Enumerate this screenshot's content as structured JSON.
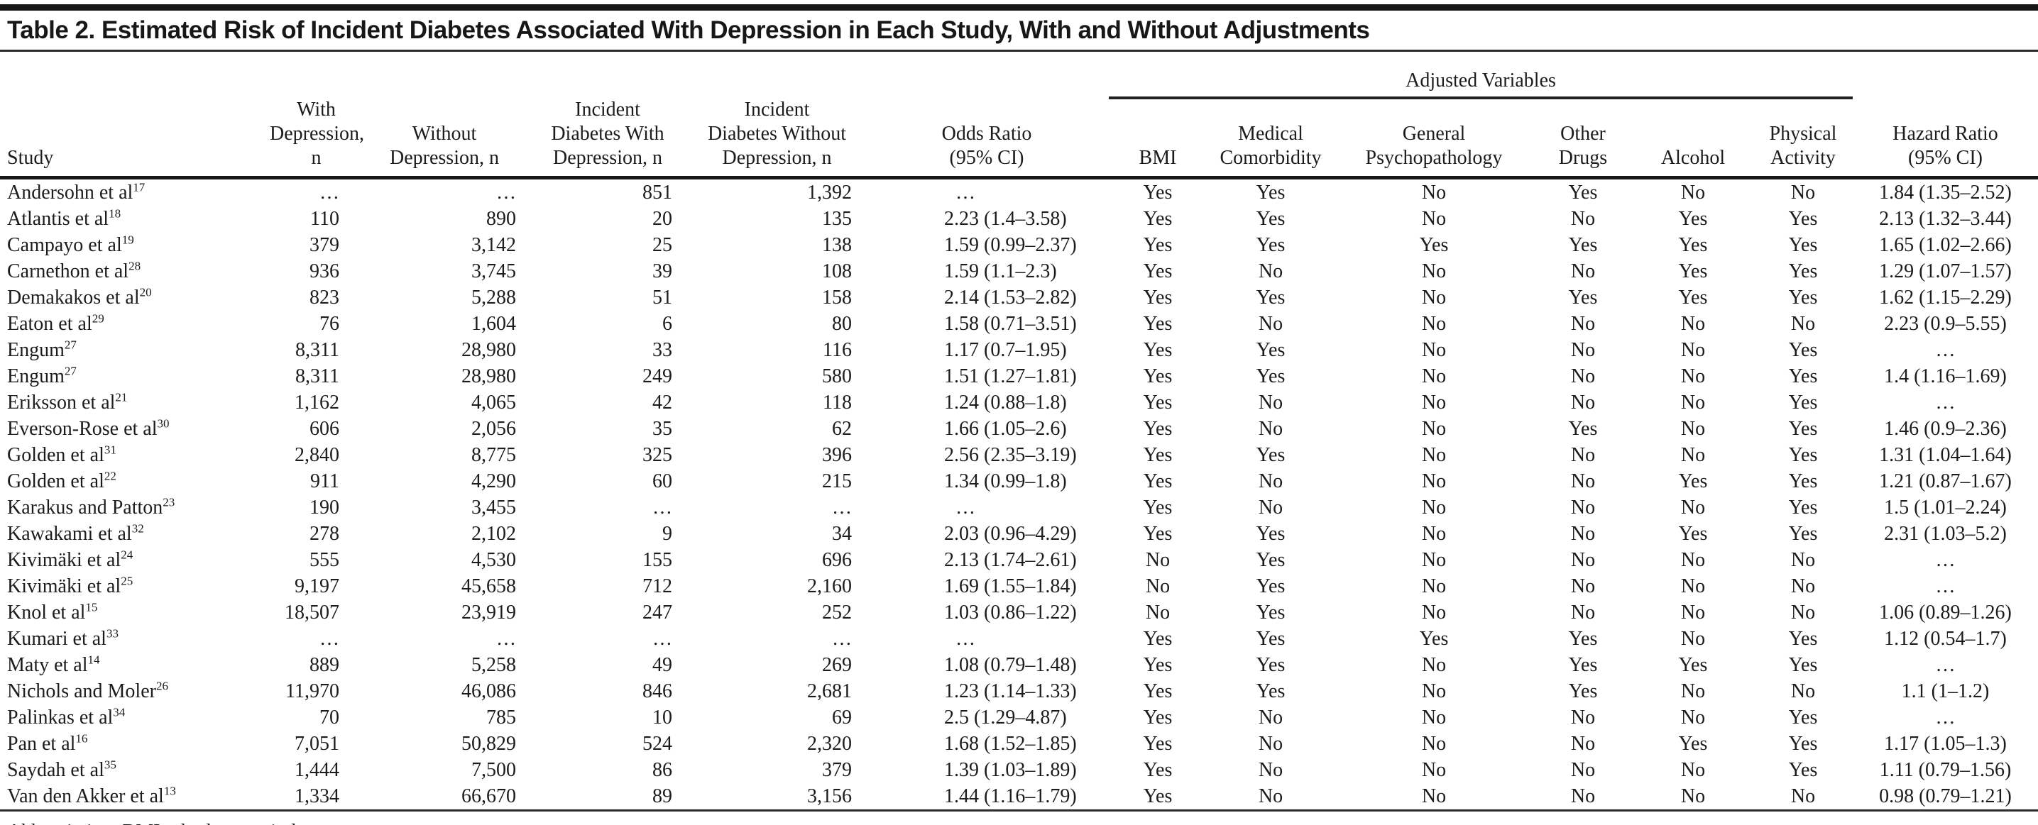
{
  "title": "Table 2. Estimated Risk of Incident Diabetes Associated With Depression in Each Study, With and Without Adjustments",
  "footnote": "Abbreviation: BMI = body mass index.",
  "table": {
    "group_header": "Adjusted Variables",
    "headers": {
      "study": [
        "Study"
      ],
      "with_depression": [
        "With",
        "Depression, n"
      ],
      "without_depression": [
        "Without",
        "Depression, n"
      ],
      "incident_with": [
        "Incident",
        "Diabetes With",
        "Depression, n"
      ],
      "incident_without": [
        "Incident",
        "Diabetes Without",
        "Depression, n"
      ],
      "odds_ratio": [
        "Odds Ratio",
        "(95% CI)"
      ],
      "bmi": [
        "BMI"
      ],
      "medical_comorbidity": [
        "Medical",
        "Comorbidity"
      ],
      "general_psychopathology": [
        "General",
        "Psychopathology"
      ],
      "other_drugs": [
        "Other",
        "Drugs"
      ],
      "alcohol": [
        "Alcohol"
      ],
      "physical_activity": [
        "Physical",
        "Activity"
      ],
      "hazard_ratio": [
        "Hazard Ratio",
        "(95% CI)"
      ]
    },
    "rows": [
      {
        "study": "Andersohn et al",
        "ref": "17",
        "with_depression": "…",
        "without_depression": "…",
        "incident_with": "851",
        "incident_without": "1,392",
        "odds_ratio": "…",
        "bmi": "Yes",
        "medical_comorbidity": "Yes",
        "general_psychopathology": "No",
        "other_drugs": "Yes",
        "alcohol": "No",
        "physical_activity": "No",
        "hazard_ratio": "1.84 (1.35–2.52)"
      },
      {
        "study": "Atlantis et al",
        "ref": "18",
        "with_depression": "110",
        "without_depression": "890",
        "incident_with": "20",
        "incident_without": "135",
        "odds_ratio": "2.23 (1.4–3.58)",
        "bmi": "Yes",
        "medical_comorbidity": "Yes",
        "general_psychopathology": "No",
        "other_drugs": "No",
        "alcohol": "Yes",
        "physical_activity": "Yes",
        "hazard_ratio": "2.13 (1.32–3.44)"
      },
      {
        "study": "Campayo et al",
        "ref": "19",
        "with_depression": "379",
        "without_depression": "3,142",
        "incident_with": "25",
        "incident_without": "138",
        "odds_ratio": "1.59 (0.99–2.37)",
        "bmi": "Yes",
        "medical_comorbidity": "Yes",
        "general_psychopathology": "Yes",
        "other_drugs": "Yes",
        "alcohol": "Yes",
        "physical_activity": "Yes",
        "hazard_ratio": "1.65 (1.02–2.66)"
      },
      {
        "study": "Carnethon et al",
        "ref": "28",
        "with_depression": "936",
        "without_depression": "3,745",
        "incident_with": "39",
        "incident_without": "108",
        "odds_ratio": "1.59 (1.1–2.3)",
        "bmi": "Yes",
        "medical_comorbidity": "No",
        "general_psychopathology": "No",
        "other_drugs": "No",
        "alcohol": "Yes",
        "physical_activity": "Yes",
        "hazard_ratio": "1.29 (1.07–1.57)"
      },
      {
        "study": "Demakakos et al",
        "ref": "20",
        "with_depression": "823",
        "without_depression": "5,288",
        "incident_with": "51",
        "incident_without": "158",
        "odds_ratio": "2.14 (1.53–2.82)",
        "bmi": "Yes",
        "medical_comorbidity": "Yes",
        "general_psychopathology": "No",
        "other_drugs": "Yes",
        "alcohol": "Yes",
        "physical_activity": "Yes",
        "hazard_ratio": "1.62 (1.15–2.29)"
      },
      {
        "study": "Eaton et al",
        "ref": "29",
        "with_depression": "76",
        "without_depression": "1,604",
        "incident_with": "6",
        "incident_without": "80",
        "odds_ratio": "1.58 (0.71–3.51)",
        "bmi": "Yes",
        "medical_comorbidity": "No",
        "general_psychopathology": "No",
        "other_drugs": "No",
        "alcohol": "No",
        "physical_activity": "No",
        "hazard_ratio": "2.23 (0.9–5.55)"
      },
      {
        "study": "Engum",
        "ref": "27",
        "with_depression": "8,311",
        "without_depression": "28,980",
        "incident_with": "33",
        "incident_without": "116",
        "odds_ratio": "1.17 (0.7–1.95)",
        "bmi": "Yes",
        "medical_comorbidity": "Yes",
        "general_psychopathology": "No",
        "other_drugs": "No",
        "alcohol": "No",
        "physical_activity": "Yes",
        "hazard_ratio": "…"
      },
      {
        "study": "Engum",
        "ref": "27",
        "with_depression": "8,311",
        "without_depression": "28,980",
        "incident_with": "249",
        "incident_without": "580",
        "odds_ratio": "1.51 (1.27–1.81)",
        "bmi": "Yes",
        "medical_comorbidity": "Yes",
        "general_psychopathology": "No",
        "other_drugs": "No",
        "alcohol": "No",
        "physical_activity": "Yes",
        "hazard_ratio": "1.4 (1.16–1.69)"
      },
      {
        "study": "Eriksson et al",
        "ref": "21",
        "with_depression": "1,162",
        "without_depression": "4,065",
        "incident_with": "42",
        "incident_without": "118",
        "odds_ratio": "1.24 (0.88–1.8)",
        "bmi": "Yes",
        "medical_comorbidity": "No",
        "general_psychopathology": "No",
        "other_drugs": "No",
        "alcohol": "No",
        "physical_activity": "Yes",
        "hazard_ratio": "…"
      },
      {
        "study": "Everson-Rose et al",
        "ref": "30",
        "with_depression": "606",
        "without_depression": "2,056",
        "incident_with": "35",
        "incident_without": "62",
        "odds_ratio": "1.66 (1.05–2.6)",
        "bmi": "Yes",
        "medical_comorbidity": "No",
        "general_psychopathology": "No",
        "other_drugs": "Yes",
        "alcohol": "No",
        "physical_activity": "Yes",
        "hazard_ratio": "1.46 (0.9–2.36)"
      },
      {
        "study": "Golden et al",
        "ref": "31",
        "with_depression": "2,840",
        "without_depression": "8,775",
        "incident_with": "325",
        "incident_without": "396",
        "odds_ratio": "2.56 (2.35–3.19)",
        "bmi": "Yes",
        "medical_comorbidity": "Yes",
        "general_psychopathology": "No",
        "other_drugs": "No",
        "alcohol": "No",
        "physical_activity": "Yes",
        "hazard_ratio": "1.31 (1.04–1.64)"
      },
      {
        "study": "Golden et al",
        "ref": "22",
        "with_depression": "911",
        "without_depression": "4,290",
        "incident_with": "60",
        "incident_without": "215",
        "odds_ratio": "1.34 (0.99–1.8)",
        "bmi": "Yes",
        "medical_comorbidity": "No",
        "general_psychopathology": "No",
        "other_drugs": "No",
        "alcohol": "Yes",
        "physical_activity": "Yes",
        "hazard_ratio": "1.21 (0.87–1.67)"
      },
      {
        "study": "Karakus and Patton",
        "ref": "23",
        "with_depression": "190",
        "without_depression": "3,455",
        "incident_with": "…",
        "incident_without": "…",
        "odds_ratio": "…",
        "bmi": "Yes",
        "medical_comorbidity": "No",
        "general_psychopathology": "No",
        "other_drugs": "No",
        "alcohol": "No",
        "physical_activity": "Yes",
        "hazard_ratio": "1.5 (1.01–2.24)"
      },
      {
        "study": "Kawakami et al",
        "ref": "32",
        "with_depression": "278",
        "without_depression": "2,102",
        "incident_with": "9",
        "incident_without": "34",
        "odds_ratio": "2.03 (0.96–4.29)",
        "bmi": "Yes",
        "medical_comorbidity": "Yes",
        "general_psychopathology": "No",
        "other_drugs": "No",
        "alcohol": "Yes",
        "physical_activity": "Yes",
        "hazard_ratio": "2.31 (1.03–5.2)"
      },
      {
        "study": "Kivimäki et al",
        "ref": "24",
        "with_depression": "555",
        "without_depression": "4,530",
        "incident_with": "155",
        "incident_without": "696",
        "odds_ratio": "2.13 (1.74–2.61)",
        "bmi": "No",
        "medical_comorbidity": "Yes",
        "general_psychopathology": "No",
        "other_drugs": "No",
        "alcohol": "No",
        "physical_activity": "No",
        "hazard_ratio": "…"
      },
      {
        "study": "Kivimäki et al",
        "ref": "25",
        "with_depression": "9,197",
        "without_depression": "45,658",
        "incident_with": "712",
        "incident_without": "2,160",
        "odds_ratio": "1.69 (1.55–1.84)",
        "bmi": "No",
        "medical_comorbidity": "Yes",
        "general_psychopathology": "No",
        "other_drugs": "No",
        "alcohol": "No",
        "physical_activity": "No",
        "hazard_ratio": "…"
      },
      {
        "study": "Knol et al",
        "ref": "15",
        "with_depression": "18,507",
        "without_depression": "23,919",
        "incident_with": "247",
        "incident_without": "252",
        "odds_ratio": "1.03 (0.86–1.22)",
        "bmi": "No",
        "medical_comorbidity": "Yes",
        "general_psychopathology": "No",
        "other_drugs": "No",
        "alcohol": "No",
        "physical_activity": "No",
        "hazard_ratio": "1.06 (0.89–1.26)"
      },
      {
        "study": "Kumari et al",
        "ref": "33",
        "with_depression": "…",
        "without_depression": "…",
        "incident_with": "…",
        "incident_without": "…",
        "odds_ratio": "…",
        "bmi": "Yes",
        "medical_comorbidity": "Yes",
        "general_psychopathology": "Yes",
        "other_drugs": "Yes",
        "alcohol": "No",
        "physical_activity": "Yes",
        "hazard_ratio": "1.12 (0.54–1.7)"
      },
      {
        "study": "Maty et al",
        "ref": "14",
        "with_depression": "889",
        "without_depression": "5,258",
        "incident_with": "49",
        "incident_without": "269",
        "odds_ratio": "1.08 (0.79–1.48)",
        "bmi": "Yes",
        "medical_comorbidity": "Yes",
        "general_psychopathology": "No",
        "other_drugs": "Yes",
        "alcohol": "Yes",
        "physical_activity": "Yes",
        "hazard_ratio": "…"
      },
      {
        "study": "Nichols and Moler",
        "ref": "26",
        "with_depression": "11,970",
        "without_depression": "46,086",
        "incident_with": "846",
        "incident_without": "2,681",
        "odds_ratio": "1.23 (1.14–1.33)",
        "bmi": "Yes",
        "medical_comorbidity": "Yes",
        "general_psychopathology": "No",
        "other_drugs": "Yes",
        "alcohol": "No",
        "physical_activity": "No",
        "hazard_ratio": "1.1 (1–1.2)"
      },
      {
        "study": "Palinkas et al",
        "ref": "34",
        "with_depression": "70",
        "without_depression": "785",
        "incident_with": "10",
        "incident_without": "69",
        "odds_ratio": "2.5 (1.29–4.87)",
        "bmi": "Yes",
        "medical_comorbidity": "No",
        "general_psychopathology": "No",
        "other_drugs": "No",
        "alcohol": "No",
        "physical_activity": "Yes",
        "hazard_ratio": "…"
      },
      {
        "study": "Pan et al",
        "ref": "16",
        "with_depression": "7,051",
        "without_depression": "50,829",
        "incident_with": "524",
        "incident_without": "2,320",
        "odds_ratio": "1.68 (1.52–1.85)",
        "bmi": "Yes",
        "medical_comorbidity": "No",
        "general_psychopathology": "No",
        "other_drugs": "No",
        "alcohol": "Yes",
        "physical_activity": "Yes",
        "hazard_ratio": "1.17 (1.05–1.3)"
      },
      {
        "study": "Saydah et al",
        "ref": "35",
        "with_depression": "1,444",
        "without_depression": "7,500",
        "incident_with": "86",
        "incident_without": "379",
        "odds_ratio": "1.39 (1.03–1.89)",
        "bmi": "Yes",
        "medical_comorbidity": "No",
        "general_psychopathology": "No",
        "other_drugs": "No",
        "alcohol": "No",
        "physical_activity": "Yes",
        "hazard_ratio": "1.11 (0.79–1.56)"
      },
      {
        "study": "Van den Akker et al",
        "ref": "13",
        "with_depression": "1,334",
        "without_depression": "66,670",
        "incident_with": "89",
        "incident_without": "3,156",
        "odds_ratio": "1.44 (1.16–1.79)",
        "bmi": "Yes",
        "medical_comorbidity": "No",
        "general_psychopathology": "No",
        "other_drugs": "No",
        "alcohol": "No",
        "physical_activity": "No",
        "hazard_ratio": "0.98 (0.79–1.21)"
      }
    ]
  }
}
